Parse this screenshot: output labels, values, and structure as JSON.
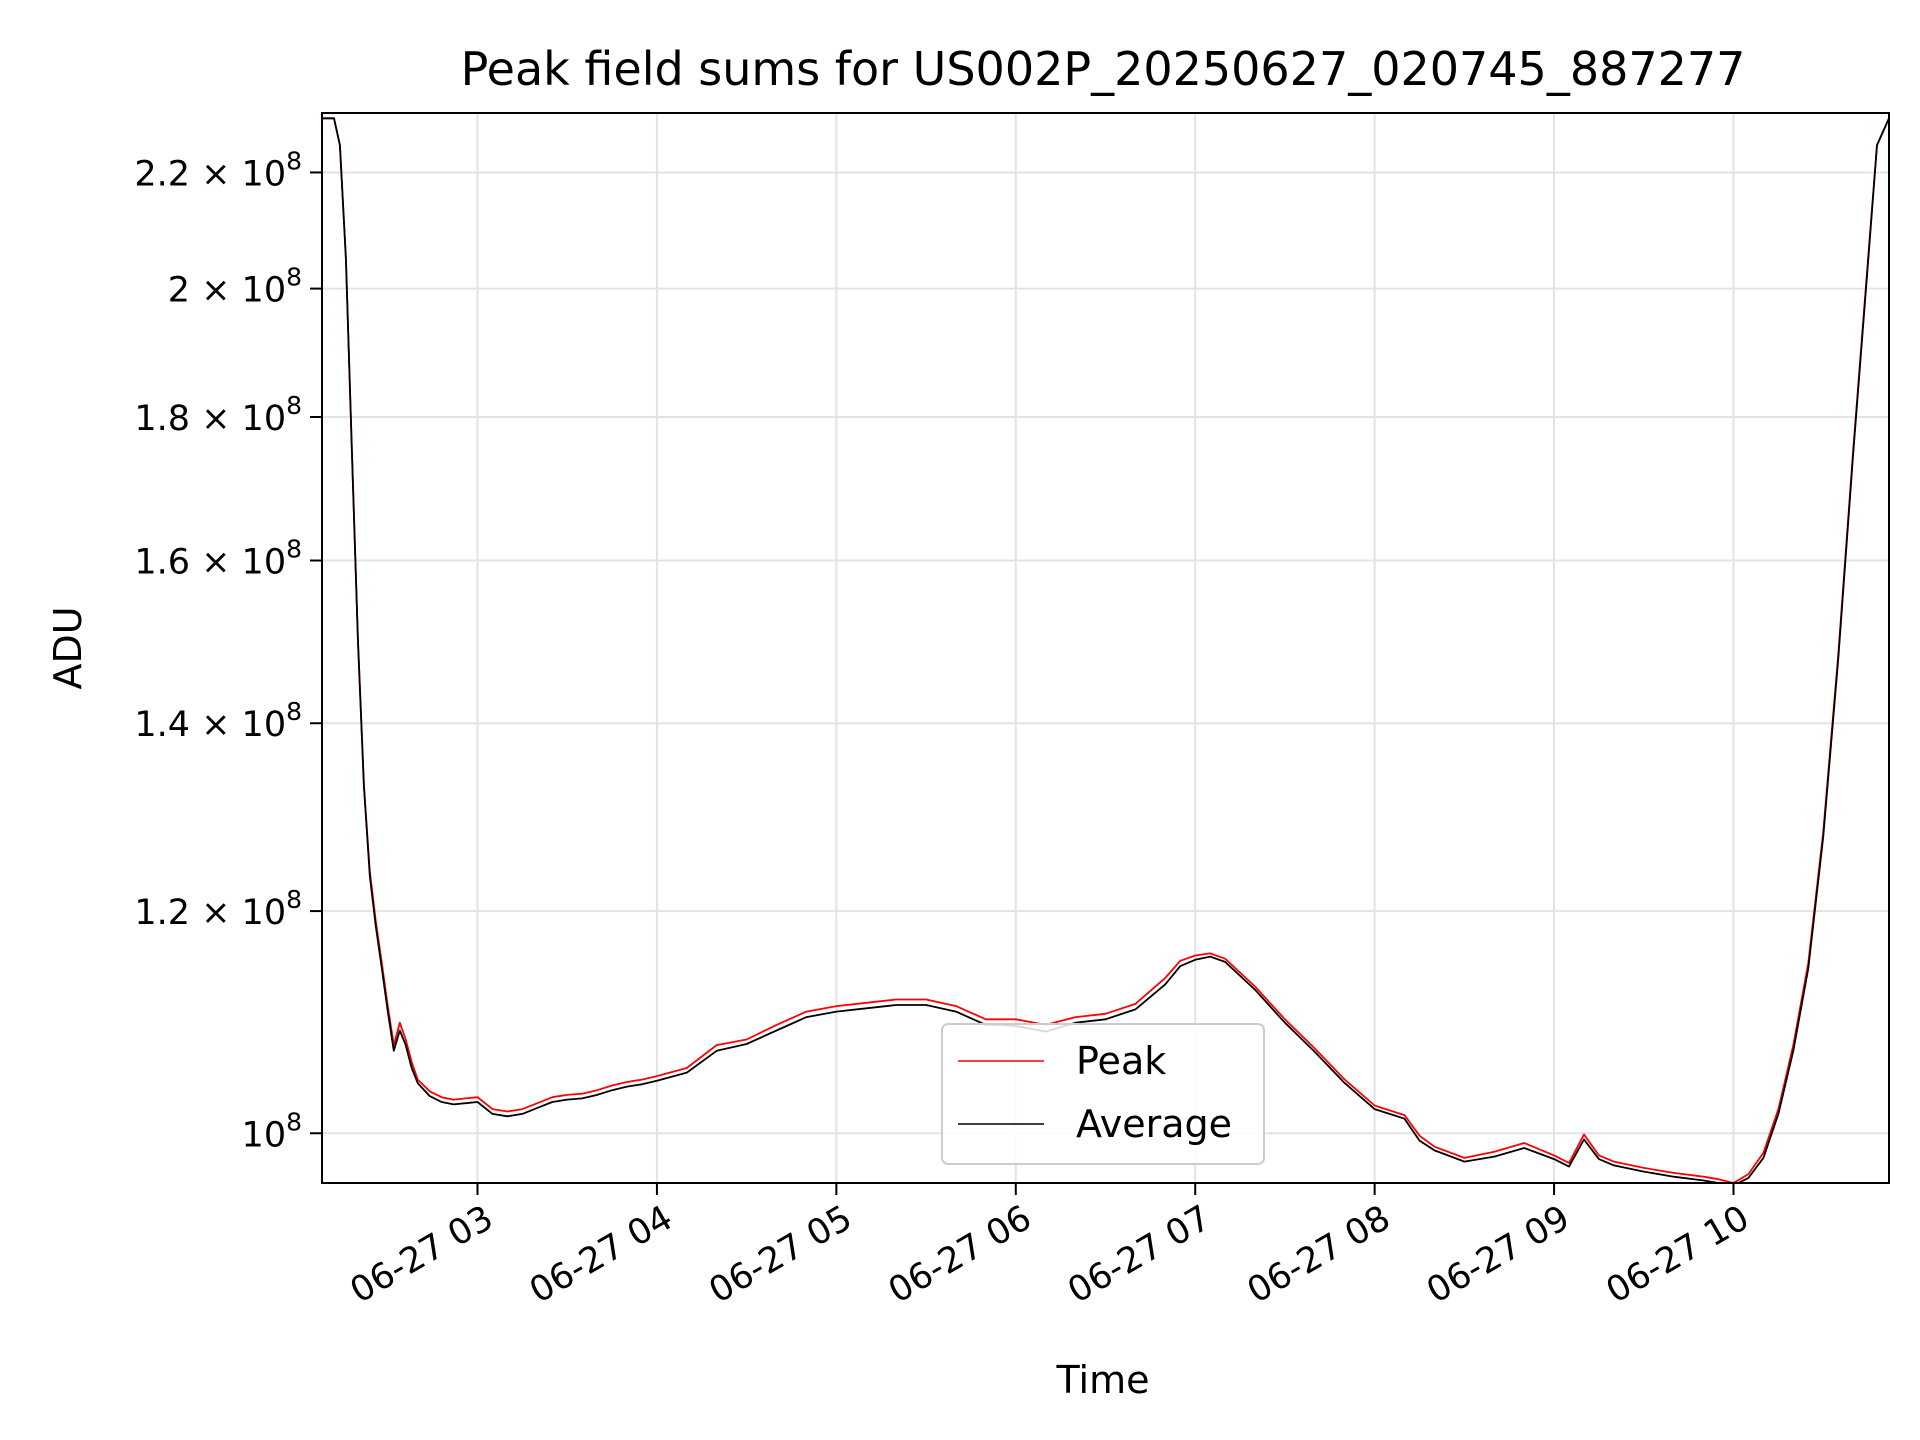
{
  "chart_data": {
    "type": "line",
    "title": "Peak field sums for US002P_20250627_020745_887277",
    "xlabel": "Time",
    "ylabel": "ADU",
    "x_date": "2025-06-27",
    "xlim": [
      "02:08",
      "10:52"
    ],
    "ylim": [
      96000000,
      231000000
    ],
    "yscale": "log",
    "grid": true,
    "legend_position": "lower center",
    "x_ticks": [
      {
        "label": "06-27 03",
        "value": "03:00"
      },
      {
        "label": "06-27 04",
        "value": "04:00"
      },
      {
        "label": "06-27 05",
        "value": "05:00"
      },
      {
        "label": "06-27 06",
        "value": "06:00"
      },
      {
        "label": "06-27 07",
        "value": "07:00"
      },
      {
        "label": "06-27 08",
        "value": "08:00"
      },
      {
        "label": "06-27 09",
        "value": "09:00"
      },
      {
        "label": "06-27 10",
        "value": "10:00"
      }
    ],
    "y_ticks": [
      {
        "value": 220000000,
        "mantissa": "2.2",
        "exponent": "8"
      },
      {
        "value": 200000000,
        "mantissa": "2",
        "exponent": "8"
      },
      {
        "value": 180000000,
        "mantissa": "1.8",
        "exponent": "8"
      },
      {
        "value": 160000000,
        "mantissa": "1.6",
        "exponent": "8"
      },
      {
        "value": 140000000,
        "mantissa": "1.4",
        "exponent": "8"
      },
      {
        "value": 120000000,
        "mantissa": "1.2",
        "exponent": "8"
      },
      {
        "value": 100000000,
        "mantissa": "",
        "exponent": "8"
      }
    ],
    "series": [
      {
        "name": "Peak",
        "color": "#ff0000",
        "x": [
          "02:08",
          "02:12",
          "02:14",
          "02:16",
          "02:18",
          "02:20",
          "02:22",
          "02:24",
          "02:26",
          "02:28",
          "02:30",
          "02:32",
          "02:34",
          "02:36",
          "02:38",
          "02:40",
          "02:44",
          "02:48",
          "02:52",
          "02:56",
          "03:00",
          "03:05",
          "03:10",
          "03:15",
          "03:20",
          "03:25",
          "03:30",
          "03:35",
          "03:40",
          "03:45",
          "03:50",
          "03:55",
          "04:00",
          "04:10",
          "04:20",
          "04:30",
          "04:40",
          "04:50",
          "05:00",
          "05:10",
          "05:20",
          "05:30",
          "05:40",
          "05:50",
          "05:55",
          "06:00",
          "06:10",
          "06:20",
          "06:30",
          "06:40",
          "06:50",
          "06:55",
          "07:00",
          "07:05",
          "07:10",
          "07:20",
          "07:30",
          "07:40",
          "07:50",
          "08:00",
          "08:10",
          "08:15",
          "08:20",
          "08:30",
          "08:40",
          "08:50",
          "09:00",
          "09:05",
          "09:10",
          "09:15",
          "09:20",
          "09:30",
          "09:40",
          "09:50",
          "09:55",
          "10:00",
          "10:05",
          "10:10",
          "10:15",
          "10:20",
          "10:25",
          "10:30",
          "10:35",
          "10:40",
          "10:45",
          "10:48",
          "10:52"
        ],
        "y": [
          230000000,
          230000000,
          225000000,
          205000000,
          175000000,
          150000000,
          133000000,
          124000000,
          119000000,
          115000000,
          111000000,
          107500000,
          109500000,
          108000000,
          106000000,
          104500000,
          103500000,
          103000000,
          102800000,
          102900000,
          103000000,
          102000000,
          101800000,
          102000000,
          102500000,
          103000000,
          103200000,
          103300000,
          103600000,
          104000000,
          104300000,
          104500000,
          104800000,
          105500000,
          107500000,
          108000000,
          109300000,
          110500000,
          111000000,
          111300000,
          111600000,
          111600000,
          111000000,
          109800000,
          109800000,
          109800000,
          109300000,
          110000000,
          110300000,
          111200000,
          113600000,
          115200000,
          115700000,
          115900000,
          115400000,
          112800000,
          109800000,
          107200000,
          104500000,
          102300000,
          101500000,
          99800000,
          98900000,
          98000000,
          98500000,
          99200000,
          98200000,
          97600000,
          99900000,
          98200000,
          97700000,
          97200000,
          96800000,
          96500000,
          96300000,
          96000000,
          96700000,
          98400000,
          102000000,
          107500000,
          115000000,
          128000000,
          148000000,
          175000000,
          205000000,
          225000000,
          230000000
        ]
      },
      {
        "name": "Average",
        "color": "#000000",
        "x": [
          "02:08",
          "02:12",
          "02:14",
          "02:16",
          "02:18",
          "02:20",
          "02:22",
          "02:24",
          "02:26",
          "02:28",
          "02:30",
          "02:32",
          "02:34",
          "02:36",
          "02:38",
          "02:40",
          "02:44",
          "02:48",
          "02:52",
          "02:56",
          "03:00",
          "03:05",
          "03:10",
          "03:15",
          "03:20",
          "03:25",
          "03:30",
          "03:35",
          "03:40",
          "03:45",
          "03:50",
          "03:55",
          "04:00",
          "04:10",
          "04:20",
          "04:30",
          "04:40",
          "04:50",
          "05:00",
          "05:10",
          "05:20",
          "05:30",
          "05:40",
          "05:50",
          "05:55",
          "06:00",
          "06:10",
          "06:20",
          "06:30",
          "06:40",
          "06:50",
          "06:55",
          "07:00",
          "07:05",
          "07:10",
          "07:20",
          "07:30",
          "07:40",
          "07:50",
          "08:00",
          "08:10",
          "08:15",
          "08:20",
          "08:30",
          "08:40",
          "08:50",
          "09:00",
          "09:05",
          "09:10",
          "09:15",
          "09:20",
          "09:30",
          "09:40",
          "09:50",
          "09:55",
          "10:00",
          "10:05",
          "10:10",
          "10:15",
          "10:20",
          "10:25",
          "10:30",
          "10:35",
          "10:40",
          "10:45",
          "10:48",
          "10:52"
        ],
        "y": [
          230000000,
          230000000,
          225000000,
          205000000,
          175000000,
          150000000,
          133000000,
          123500000,
          118500000,
          114500000,
          110500000,
          107000000,
          108800000,
          107500000,
          105500000,
          104200000,
          103100000,
          102600000,
          102400000,
          102500000,
          102600000,
          101600000,
          101400000,
          101600000,
          102100000,
          102600000,
          102800000,
          102900000,
          103200000,
          103600000,
          103900000,
          104100000,
          104400000,
          105100000,
          107000000,
          107600000,
          108800000,
          110000000,
          110500000,
          110800000,
          111100000,
          111100000,
          110500000,
          109300000,
          109300000,
          109200000,
          108700000,
          109500000,
          109800000,
          110700000,
          113000000,
          114700000,
          115300000,
          115600000,
          115100000,
          112500000,
          109500000,
          106900000,
          104200000,
          102000000,
          101200000,
          99400000,
          98600000,
          97700000,
          98100000,
          98800000,
          97900000,
          97300000,
          99500000,
          97900000,
          97400000,
          96900000,
          96500000,
          96200000,
          96000000,
          95800000,
          96400000,
          98000000,
          101600000,
          107000000,
          114500000,
          127500000,
          147500000,
          174500000,
          204500000,
          225000000,
          230000000
        ]
      }
    ]
  }
}
